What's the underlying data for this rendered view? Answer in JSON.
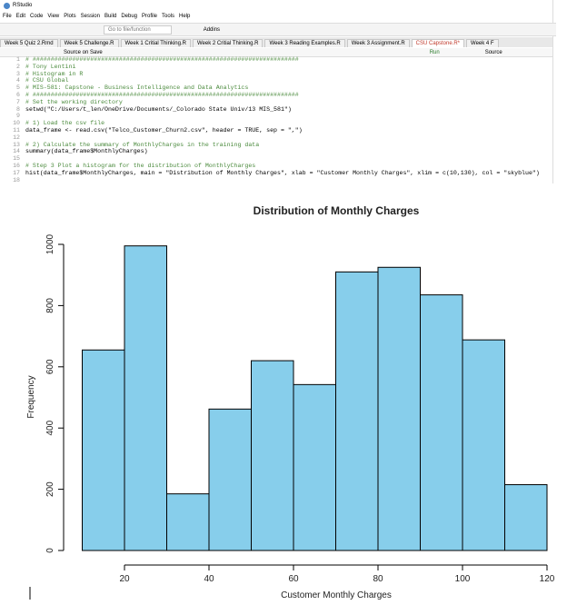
{
  "window": {
    "title": "RStudio",
    "menu": [
      "File",
      "Edit",
      "Code",
      "View",
      "Plots",
      "Session",
      "Build",
      "Debug",
      "Profile",
      "Tools",
      "Help"
    ],
    "toolbar": {
      "search": "Go to file/function",
      "addins": "Addins"
    },
    "tabs": [
      "Week 5 Quiz 2.Rmd",
      "Week 5 Challenge.R",
      "Week 1 Critial Thinking.R",
      "Week 2 Critial Thinking.R",
      "Week 3 Reading Examples.R",
      "Week 3 Assignment.R",
      "CSU Capstone.R*",
      "Week 4 F"
    ],
    "editor_toolbar": {
      "source_on_save": "Source on Save",
      "run": "Run",
      "source": "Source"
    }
  },
  "editor": {
    "lines": [
      {
        "n": 1,
        "text": "# ##########################################################################"
      },
      {
        "n": 2,
        "text": "# Tony Lentini"
      },
      {
        "n": 3,
        "text": "# Histogram in R"
      },
      {
        "n": 4,
        "text": "# CSU Global"
      },
      {
        "n": 5,
        "text": "# MIS-581: Capstone - Business Intelligence and Data Analytics"
      },
      {
        "n": 6,
        "text": "# ##########################################################################"
      },
      {
        "n": 7,
        "text": "# Set the working directory"
      },
      {
        "n": 8,
        "text": "setwd(\"C:/Users/t_len/OneDrive/Documents/_Colorado State Univ/13 MIS_581\")"
      },
      {
        "n": 9
      },
      {
        "n": 10,
        "text": "# 1) Load the csv file"
      },
      {
        "n": 11,
        "text": "data_frame <- read.csv(\"Telco_Customer_Churn2.csv\", header = TRUE, sep = \",\")"
      },
      {
        "n": 12
      },
      {
        "n": 13,
        "text": "# 2) Calculate the summary of MonthlyCharges in the training data"
      },
      {
        "n": 14,
        "text": "summary(data_frame$MonthlyCharges)"
      },
      {
        "n": 15
      },
      {
        "n": 16,
        "text": "# Step 3 Plot a histogram for the distribution of MonthlyCharges"
      },
      {
        "n": 17,
        "text": "hist(data_frame$MonthlyCharges, main = \"Distribution of Monthly Charges\", xlab = \"Customer Monthly Charges\", xlim = c(10,130), col = \"skyblue\")"
      },
      {
        "n": 18
      }
    ]
  },
  "chart_data": {
    "type": "histogram",
    "title": "Distribution of Monthly Charges",
    "x_label": "Customer Monthly Charges",
    "y_label": "Frequency",
    "bins": [
      10,
      20,
      30,
      40,
      50,
      60,
      70,
      80,
      90,
      100,
      110,
      120
    ],
    "values": [
      655,
      995,
      185,
      462,
      620,
      542,
      910,
      925,
      835,
      688,
      215
    ],
    "color": "#87ceeb",
    "edge_color": "#000000",
    "xlim": [
      10,
      120
    ],
    "ylim": [
      0,
      1000
    ],
    "xticks": [
      20,
      40,
      60,
      80,
      100,
      120
    ],
    "yticks": [
      0,
      200,
      400,
      600,
      800,
      1000
    ]
  }
}
